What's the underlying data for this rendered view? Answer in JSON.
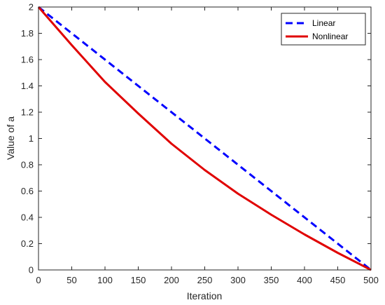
{
  "chart_data": {
    "type": "line",
    "xlabel": "Iteration",
    "ylabel": "Value of a",
    "xlim": [
      0,
      500
    ],
    "ylim": [
      0,
      2
    ],
    "xticks": [
      0,
      50,
      100,
      150,
      200,
      250,
      300,
      350,
      400,
      450,
      500
    ],
    "yticks": [
      0,
      0.2,
      0.4,
      0.6,
      0.8,
      1,
      1.2,
      1.4,
      1.6,
      1.8,
      2
    ],
    "grid": false,
    "legend_position": "top-right",
    "series": [
      {
        "name": "Linear",
        "color": "#0000ff",
        "style": "dashed",
        "x": [
          0,
          500
        ],
        "y": [
          2,
          0
        ]
      },
      {
        "name": "Nonlinear",
        "color": "#e00000",
        "style": "solid",
        "x": [
          0,
          50,
          100,
          150,
          200,
          250,
          300,
          350,
          400,
          450,
          500
        ],
        "y": [
          2,
          1.71,
          1.43,
          1.19,
          0.96,
          0.76,
          0.58,
          0.42,
          0.27,
          0.13,
          0
        ]
      }
    ]
  }
}
